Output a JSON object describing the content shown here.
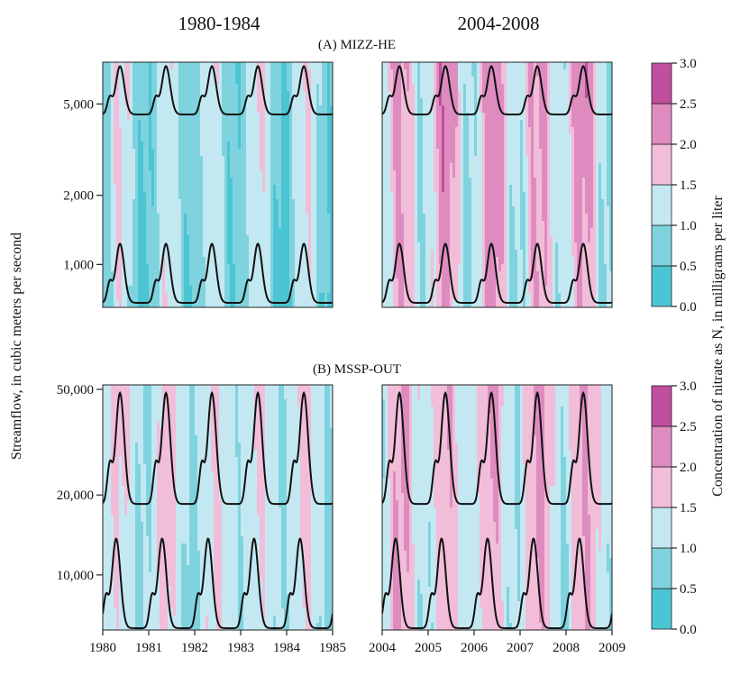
{
  "figure": {
    "column_titles": [
      "1980-1984",
      "2004-2008"
    ],
    "ylabel": "Streamflow, in cubic meters per second",
    "colorbar_label": "Concentration of nitrate as N, in milligrams per liter"
  },
  "palette": {
    "band_colors": [
      "#4bc5d3",
      "#7fd3de",
      "#c4e8f2",
      "#f2bdd9",
      "#de8cc0",
      "#c24ea0"
    ],
    "curve_color": "#111111"
  },
  "chart_data": [
    {
      "type": "heatmap",
      "panel": "(A) MIZZ-HE",
      "title": "(A) MIZZ-HE",
      "y_scale": "log",
      "ylim": [
        650,
        7600
      ],
      "y_ticks": [
        {
          "value": 5000,
          "label": "5,000"
        },
        {
          "value": 2000,
          "label": "2,000"
        },
        {
          "value": 1000,
          "label": "1,000"
        }
      ],
      "colorbar": {
        "levels": [
          0.0,
          0.5,
          1.0,
          1.5,
          2.0,
          2.5,
          3.0
        ],
        "labels": [
          "0.0",
          "0.5",
          "1.0",
          "1.5",
          "2.0",
          "2.5",
          "3.0"
        ]
      },
      "subplots": [
        {
          "period": "1980-1984",
          "xlim": [
            "1980-01-01",
            "1985-01-01"
          ],
          "x_ticks": [],
          "high_flow_curve": {
            "min": 4500,
            "max": 7300,
            "peak_month": 5
          },
          "low_flow_curve": {
            "min": 680,
            "max": 1230,
            "peak_month": 5
          },
          "concentration_range": [
            0.2,
            1.7
          ]
        },
        {
          "period": "2004-2008",
          "xlim": [
            "2004-01-01",
            "2009-01-01"
          ],
          "x_ticks": [],
          "high_flow_curve": {
            "min": 4500,
            "max": 7300,
            "peak_month": 5
          },
          "low_flow_curve": {
            "min": 680,
            "max": 1230,
            "peak_month": 5
          },
          "concentration_range": [
            0.6,
            2.6
          ]
        }
      ]
    },
    {
      "type": "heatmap",
      "panel": "(B) MSSP-OUT",
      "title": "(B) MSSP-OUT",
      "y_scale": "log",
      "ylim": [
        6200,
        52000
      ],
      "y_ticks": [
        {
          "value": 50000,
          "label": "50,000"
        },
        {
          "value": 20000,
          "label": "20,000"
        },
        {
          "value": 10000,
          "label": "10,000"
        }
      ],
      "colorbar": {
        "levels": [
          0.0,
          0.5,
          1.0,
          1.5,
          2.0,
          2.5,
          3.0
        ],
        "labels": [
          "0.0",
          "0.5",
          "1.0",
          "1.5",
          "2.0",
          "2.5",
          "3.0"
        ]
      },
      "subplots": [
        {
          "period": "1980-1984",
          "xlim": [
            "1980-01-01",
            "1985-01-01"
          ],
          "x_ticks": [
            "1980",
            "1981",
            "1982",
            "1983",
            "1984",
            "1985"
          ],
          "high_flow_curve": {
            "min": 18500,
            "max": 48500,
            "peak_month": 5
          },
          "low_flow_curve": {
            "min": 6300,
            "max": 13700,
            "peak_month": 4
          },
          "concentration_range": [
            0.8,
            1.75
          ]
        },
        {
          "period": "2004-2008",
          "xlim": [
            "2004-01-01",
            "2009-01-01"
          ],
          "x_ticks": [
            "2004",
            "2005",
            "2006",
            "2007",
            "2008",
            "2009"
          ],
          "high_flow_curve": {
            "min": 18500,
            "max": 48500,
            "peak_month": 5
          },
          "low_flow_curve": {
            "min": 6300,
            "max": 13700,
            "peak_month": 4
          },
          "concentration_range": [
            0.8,
            2.3
          ]
        }
      ]
    }
  ]
}
